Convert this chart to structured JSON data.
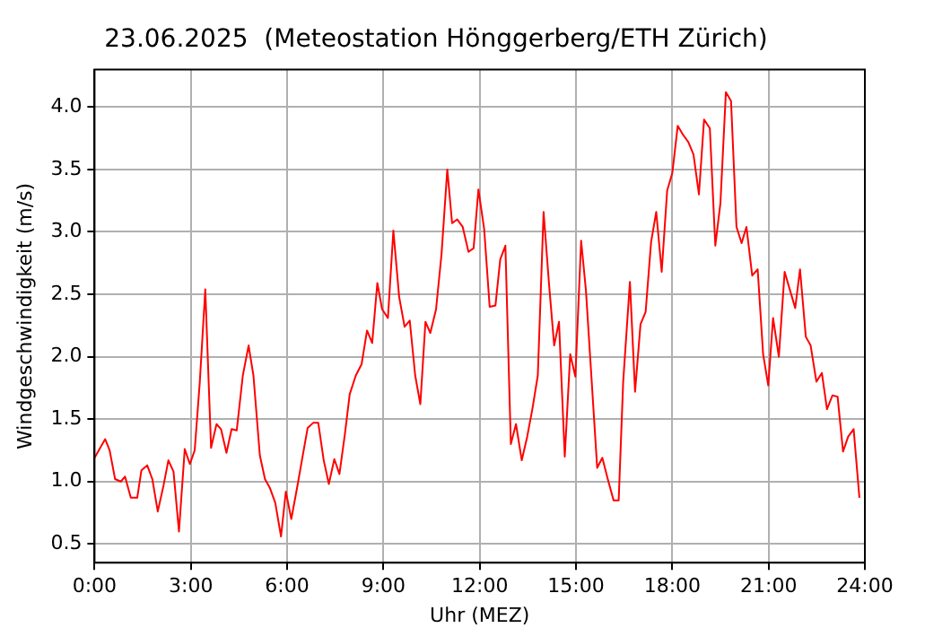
{
  "chart_data": {
    "type": "line",
    "title": "23.06.2025  (Meteostation Hönggerberg/ETH Zürich)",
    "xlabel": "Uhr (MEZ)",
    "ylabel": "Windgeschwindigkeit (m/s)",
    "xlim": [
      0,
      24
    ],
    "xticks": [
      {
        "value": 0,
        "label": "0:00"
      },
      {
        "value": 3,
        "label": "3:00"
      },
      {
        "value": 6,
        "label": "6:00"
      },
      {
        "value": 9,
        "label": "9:00"
      },
      {
        "value": 12,
        "label": "12:00"
      },
      {
        "value": 15,
        "label": "15:00"
      },
      {
        "value": 18,
        "label": "18:00"
      },
      {
        "value": 21,
        "label": "21:00"
      },
      {
        "value": 24,
        "label": "24:00"
      }
    ],
    "ylim": [
      0.35,
      4.3
    ],
    "yticks": [
      {
        "value": 0.5,
        "label": "0.5"
      },
      {
        "value": 1,
        "label": "1.0"
      },
      {
        "value": 1.5,
        "label": "1.5"
      },
      {
        "value": 2,
        "label": "2.0"
      },
      {
        "value": 2.5,
        "label": "2.5"
      },
      {
        "value": 3,
        "label": "3.0"
      },
      {
        "value": 3.5,
        "label": "3.5"
      },
      {
        "value": 4,
        "label": "4.0"
      }
    ],
    "grid": true,
    "legend": false,
    "marker": "none",
    "line_style": "solid",
    "x": [
      0,
      0.33,
      0.47,
      0.64,
      0.82,
      0.95,
      1.13,
      1.33,
      1.46,
      1.64,
      1.8,
      1.97,
      2.15,
      2.3,
      2.46,
      2.63,
      2.81,
      2.97,
      3.12,
      3.28,
      3.45,
      3.63,
      3.8,
      3.94,
      4.11,
      4.27,
      4.43,
      4.62,
      4.8,
      4.95,
      5.15,
      5.31,
      5.46,
      5.63,
      5.81,
      5.96,
      6.13,
      6.31,
      6.46,
      6.64,
      6.81,
      6.97,
      7.14,
      7.3,
      7.47,
      7.63,
      7.8,
      7.95,
      8.14,
      8.32,
      8.49,
      8.65,
      8.81,
      8.96,
      9.14,
      9.31,
      9.49,
      9.66,
      9.82,
      9.99,
      10.15,
      10.31,
      10.46,
      10.64,
      10.81,
      10.99,
      11.14,
      11.3,
      11.47,
      11.65,
      11.81,
      11.96,
      12.14,
      12.31,
      12.49,
      12.64,
      12.8,
      12.97,
      13.13,
      13.31,
      13.48,
      13.64,
      13.81,
      13.99,
      14.16,
      14.32,
      14.47,
      14.65,
      14.82,
      14.98,
      15.16,
      15.31,
      15.49,
      15.66,
      15.82,
      15.99,
      16.17,
      16.33,
      16.47,
      16.68,
      16.84,
      17.01,
      17.17,
      17.34,
      17.5,
      17.67,
      17.84,
      18,
      18.17,
      18.33,
      18.5,
      18.66,
      18.83,
      18.99,
      19.17,
      19.34,
      19.5,
      19.67,
      19.83,
      20,
      20.16,
      20.31,
      20.49,
      20.66,
      20.83,
      20.99,
      21.14,
      21.32,
      21.5,
      21.67,
      21.83,
      21.98,
      22.16,
      22.31,
      22.49,
      22.66,
      22.82,
      22.99,
      23.15,
      23.32,
      23.48,
      23.65,
      23.83
    ],
    "series": [
      {
        "color": "#ff0000",
        "values": [
          1.19,
          1.34,
          1.25,
          1.02,
          1.0,
          1.04,
          0.87,
          0.87,
          1.09,
          1.13,
          1.02,
          0.76,
          0.97,
          1.17,
          1.08,
          0.6,
          1.26,
          1.14,
          1.25,
          1.8,
          2.54,
          1.27,
          1.46,
          1.42,
          1.23,
          1.42,
          1.41,
          1.85,
          2.09,
          1.85,
          1.21,
          1.02,
          0.95,
          0.83,
          0.56,
          0.92,
          0.7,
          0.95,
          1.17,
          1.43,
          1.47,
          1.47,
          1.17,
          0.98,
          1.18,
          1.06,
          1.38,
          1.7,
          1.85,
          1.94,
          2.21,
          2.11,
          2.59,
          2.38,
          2.31,
          3.01,
          2.48,
          2.24,
          2.29,
          1.85,
          1.62,
          2.28,
          2.19,
          2.38,
          2.82,
          3.5,
          3.07,
          3.1,
          3.04,
          2.84,
          2.87,
          3.34,
          3.02,
          2.4,
          2.41,
          2.78,
          2.89,
          1.3,
          1.46,
          1.17,
          1.36,
          1.58,
          1.85,
          3.16,
          2.58,
          2.09,
          2.28,
          1.2,
          2.02,
          1.84,
          2.93,
          2.53,
          1.8,
          1.11,
          1.19,
          1.02,
          0.85,
          0.85,
          1.8,
          2.6,
          1.72,
          2.26,
          2.36,
          2.92,
          3.16,
          2.68,
          3.33,
          3.47,
          3.85,
          3.78,
          3.72,
          3.62,
          3.3,
          3.9,
          3.83,
          2.89,
          3.23,
          4.12,
          4.05,
          3.04,
          2.91,
          3.04,
          2.65,
          2.7,
          2.02,
          1.77,
          2.31,
          2.0,
          2.68,
          2.53,
          2.39,
          2.7,
          2.16,
          2.09,
          1.8,
          1.87,
          1.58,
          1.69,
          1.68,
          1.24,
          1.36,
          1.42,
          0.87
        ]
      }
    ]
  }
}
